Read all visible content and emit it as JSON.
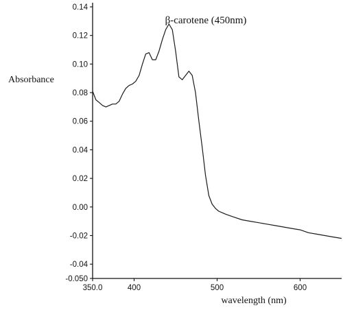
{
  "chart_data": {
    "type": "line",
    "title": "",
    "annotation": "β-carotene (450nm)",
    "xlabel": "wavelength (nm)",
    "ylabel": "Absorbance",
    "xlim": [
      350,
      650
    ],
    "ylim": [
      -0.05,
      0.14
    ],
    "y_ticks": [
      {
        "value": 0.14,
        "label": "0.14"
      },
      {
        "value": 0.12,
        "label": "0.12"
      },
      {
        "value": 0.1,
        "label": "0.10"
      },
      {
        "value": 0.08,
        "label": "0.08"
      },
      {
        "value": 0.06,
        "label": "0.06"
      },
      {
        "value": 0.04,
        "label": "0.04"
      },
      {
        "value": 0.02,
        "label": "0.02"
      },
      {
        "value": 0.0,
        "label": "0.00"
      },
      {
        "value": -0.02,
        "label": "-0.02"
      },
      {
        "value": -0.04,
        "label": "-0.04"
      },
      {
        "value": -0.05,
        "label": "-0.050"
      }
    ],
    "x_ticks": [
      {
        "value": 350,
        "label": "350.0"
      },
      {
        "value": 400,
        "label": "400"
      },
      {
        "value": 500,
        "label": "500"
      },
      {
        "value": 600,
        "label": "600"
      }
    ],
    "grid": false,
    "series": [
      {
        "x": [
          350,
          354,
          358,
          362,
          366,
          370,
          374,
          378,
          382,
          386,
          390,
          394,
          398,
          402,
          406,
          410,
          414,
          418,
          422,
          426,
          430,
          434,
          438,
          442,
          446,
          450,
          454,
          458,
          462,
          466,
          470,
          474,
          478,
          482,
          486,
          490,
          494,
          498,
          502,
          506,
          510,
          515,
          520,
          530,
          540,
          550,
          560,
          570,
          580,
          590,
          600,
          610,
          620,
          630,
          640,
          650
        ],
        "y": [
          0.081,
          0.075,
          0.073,
          0.071,
          0.07,
          0.071,
          0.072,
          0.072,
          0.074,
          0.079,
          0.083,
          0.085,
          0.086,
          0.088,
          0.092,
          0.1,
          0.107,
          0.108,
          0.103,
          0.103,
          0.109,
          0.117,
          0.124,
          0.128,
          0.124,
          0.109,
          0.091,
          0.089,
          0.092,
          0.095,
          0.092,
          0.08,
          0.06,
          0.042,
          0.022,
          0.008,
          0.002,
          -0.001,
          -0.003,
          -0.004,
          -0.005,
          -0.006,
          -0.007,
          -0.009,
          -0.01,
          -0.011,
          -0.012,
          -0.013,
          -0.014,
          -0.015,
          -0.016,
          -0.018,
          -0.019,
          -0.02,
          -0.021,
          -0.022
        ]
      }
    ]
  }
}
